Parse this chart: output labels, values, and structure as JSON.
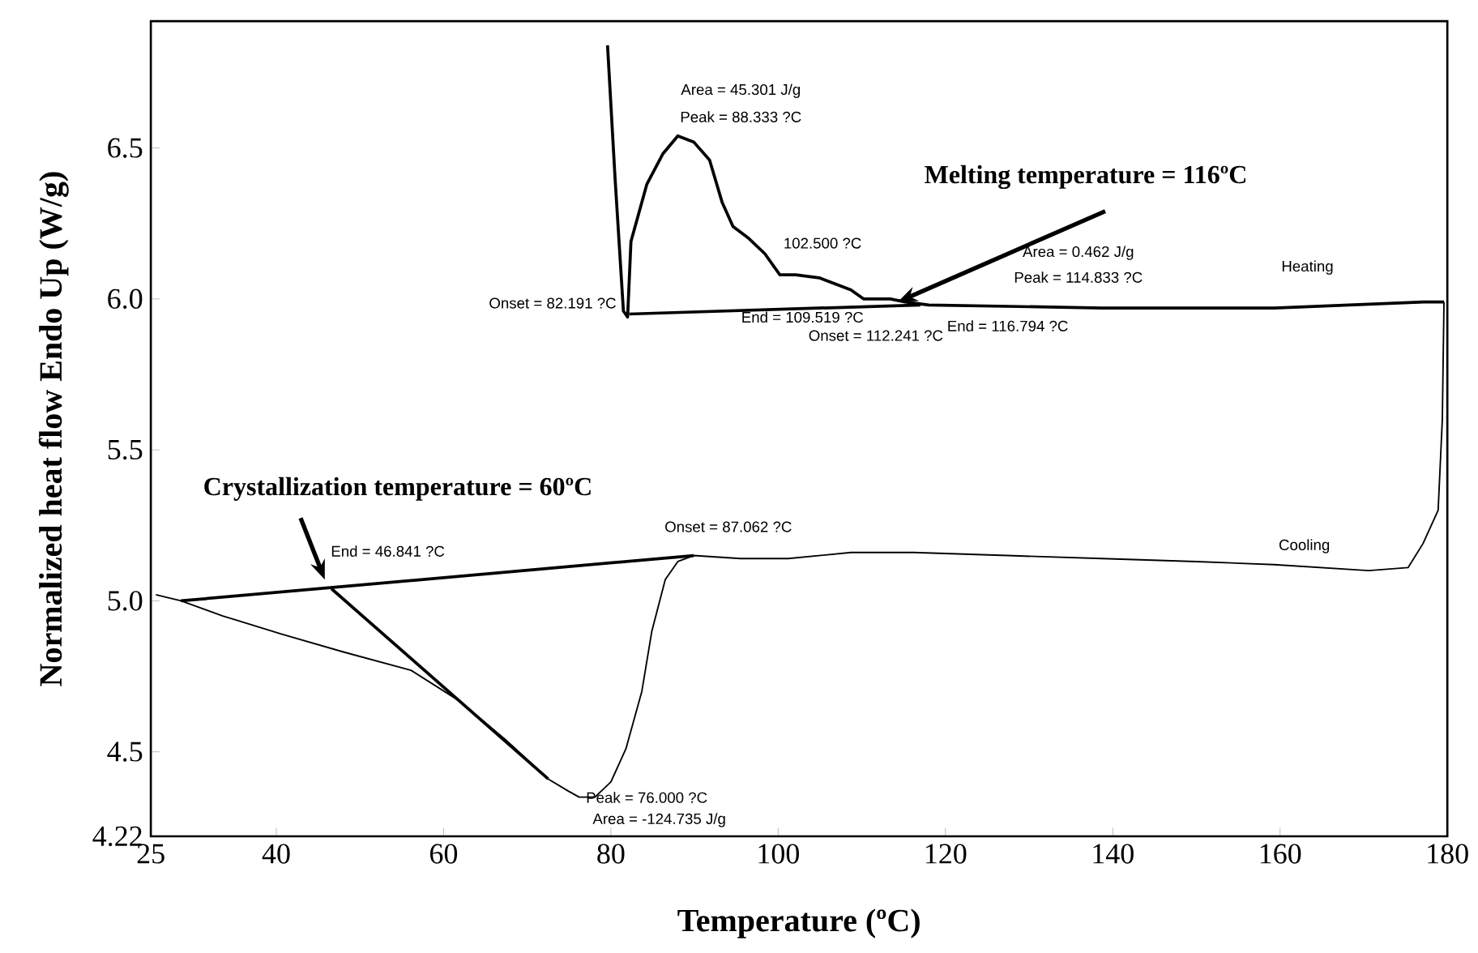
{
  "chart_data": {
    "type": "line",
    "xlabel": "Temperature (ºC)",
    "ylabel": "Normalized heat flow Endo Up (W/g)",
    "xlim": [
      25,
      180
    ],
    "ylim": [
      4.22,
      6.92
    ],
    "xticks": [
      25,
      40,
      60,
      80,
      100,
      120,
      140,
      160,
      180
    ],
    "yticks": [
      4.22,
      4.5,
      {
        "value": 5.0,
        "label": "5.0"
      },
      5.5,
      {
        "value": 6.0,
        "label": "6.0"
      },
      6.5
    ],
    "grid": false,
    "marker": "none",
    "line_style": "solid",
    "series": [
      {
        "color": "#000000",
        "x": [
          79.6,
          80.5,
          81.5,
          82.0,
          82.4,
          84.3,
          86.2,
          88.0,
          89.9,
          91.8,
          93.3,
          94.6,
          96.5,
          98.4,
          100.2,
          102.1,
          104.9,
          106.8,
          108.7,
          110.2,
          111.5,
          113.4,
          115.2,
          118.0,
          138.7,
          159.3,
          177.2,
          179.6
        ],
        "values": [
          6.84,
          6.4,
          5.96,
          5.94,
          6.19,
          6.38,
          6.48,
          6.54,
          6.52,
          6.46,
          6.32,
          6.24,
          6.2,
          6.15,
          6.08,
          6.08,
          6.07,
          6.05,
          6.03,
          6.0,
          6.0,
          6.0,
          5.99,
          5.98,
          5.97,
          5.97,
          5.99,
          5.99
        ]
      },
      {
        "color": "#000000",
        "x": [
          179.6,
          179.4,
          178.9,
          177.1,
          175.3,
          170.6,
          159.3,
          150.0,
          138.7,
          127.4,
          116.2,
          108.7,
          101.2,
          95.5,
          89.9,
          88.0,
          86.5,
          84.9,
          83.7,
          81.8,
          80.0,
          78.1,
          76.2,
          74.9,
          72.5,
          67.4,
          61.8,
          56.1,
          48.1,
          40.6,
          33.6,
          28.6,
          25.6
        ],
        "values": [
          5.99,
          5.6,
          5.3,
          5.19,
          5.11,
          5.1,
          5.12,
          5.13,
          5.14,
          5.15,
          5.16,
          5.16,
          5.14,
          5.14,
          5.15,
          5.13,
          5.07,
          4.9,
          4.7,
          4.51,
          4.4,
          4.35,
          4.35,
          4.37,
          4.41,
          4.54,
          4.67,
          4.77,
          4.83,
          4.89,
          4.95,
          5.0,
          5.02
        ]
      },
      {
        "color": "#000000",
        "x": [
          82.2,
          117.0
        ],
        "values": [
          5.95,
          5.98
        ]
      },
      {
        "color": "#000000",
        "x": [
          28.6,
          89.9
        ],
        "values": [
          5.0,
          5.15
        ]
      },
      {
        "color": "#000000",
        "x": [
          46.6,
          72.5
        ],
        "values": [
          5.04,
          4.41
        ]
      }
    ],
    "annotations": [
      "Area = 45.301 J/g",
      "Peak = 88.333 ?C",
      "Onset = 82.191 ?C",
      "102.500 ?C",
      {
        "text": "End = 109.519 ?C",
        "x": 102.9,
        "y": 5.94
      },
      "Area = 0.462 J/g",
      "Peak = 114.833 ?C",
      "Onset = 112.241 ?C",
      "End = 116.794 ?C",
      "Heating",
      {
        "text": "Melting temperature = 116ºC",
        "x": 114.3,
        "y": 5.99
      },
      {
        "text": "Crystallization temperature = 60ºC",
        "x": 45.8,
        "y": 5.07
      },
      "End = 46.841 ?C",
      "Onset = 87.062 ?C",
      "Cooling",
      "Peak = 76.000 ?C",
      "Area = -124.735 J/g"
    ]
  }
}
